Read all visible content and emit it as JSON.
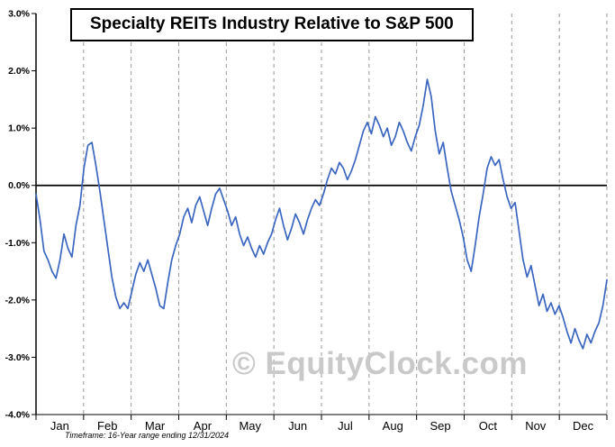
{
  "title": "Specialty REITs Industry Relative to S&P 500",
  "watermark": "© EquityClock.com",
  "footer": "Timeframe: 16-Year range ending 12/31/2024",
  "chart_data": {
    "type": "line",
    "title": "Specialty REITs Industry Relative to S&P 500",
    "series_name": "Specialty REITs relative performance vs S&P 500",
    "xlabel": "",
    "ylabel": "",
    "x_unit": "month",
    "categories": [
      "Jan",
      "Feb",
      "Mar",
      "Apr",
      "May",
      "Jun",
      "Jul",
      "Aug",
      "Sep",
      "Oct",
      "Nov",
      "Dec"
    ],
    "ylim": [
      -4.0,
      3.0
    ],
    "ytick_values": [
      3.0,
      2.0,
      1.0,
      0.0,
      -1.0,
      -2.0,
      -3.0,
      -4.0
    ],
    "ytick_labels": [
      "3.0%",
      "2.0%",
      "1.0%",
      "0.0%",
      "-1.0%",
      "-2.0%",
      "-3.0%",
      "-4.0%"
    ],
    "zero_line": true,
    "grid": "vertical-dashed-monthly",
    "legend_position": "none",
    "line_color": "#3a66c0",
    "axis_color": "#000000",
    "grid_color": "#999999",
    "values": [
      -0.15,
      -0.6,
      -1.15,
      -1.3,
      -1.5,
      -1.62,
      -1.3,
      -0.85,
      -1.1,
      -1.25,
      -0.7,
      -0.35,
      0.3,
      0.7,
      0.75,
      0.35,
      -0.1,
      -0.6,
      -1.1,
      -1.6,
      -1.95,
      -2.15,
      -2.05,
      -2.15,
      -1.85,
      -1.55,
      -1.35,
      -1.5,
      -1.3,
      -1.55,
      -1.8,
      -2.1,
      -2.15,
      -1.7,
      -1.3,
      -1.05,
      -0.85,
      -0.55,
      -0.4,
      -0.65,
      -0.35,
      -0.2,
      -0.45,
      -0.7,
      -0.4,
      -0.15,
      -0.05,
      -0.25,
      -0.45,
      -0.7,
      -0.55,
      -0.85,
      -1.05,
      -0.9,
      -1.1,
      -1.25,
      -1.05,
      -1.2,
      -1.0,
      -0.85,
      -0.6,
      -0.4,
      -0.7,
      -0.95,
      -0.75,
      -0.5,
      -0.65,
      -0.85,
      -0.6,
      -0.4,
      -0.25,
      -0.35,
      -0.15,
      0.1,
      0.3,
      0.2,
      0.4,
      0.3,
      0.1,
      0.25,
      0.45,
      0.7,
      0.95,
      1.1,
      0.9,
      1.2,
      1.05,
      0.85,
      1.0,
      0.7,
      0.85,
      1.1,
      0.95,
      0.75,
      0.6,
      0.85,
      1.05,
      1.4,
      1.85,
      1.55,
      0.95,
      0.55,
      0.75,
      0.3,
      -0.1,
      -0.35,
      -0.6,
      -0.9,
      -1.3,
      -1.5,
      -1.05,
      -0.55,
      -0.15,
      0.3,
      0.5,
      0.35,
      0.45,
      0.1,
      -0.2,
      -0.4,
      -0.3,
      -0.8,
      -1.3,
      -1.6,
      -1.4,
      -1.75,
      -2.1,
      -1.9,
      -2.2,
      -2.05,
      -2.25,
      -2.1,
      -2.3,
      -2.55,
      -2.75,
      -2.5,
      -2.7,
      -2.85,
      -2.6,
      -2.75,
      -2.55,
      -2.4,
      -2.1,
      -1.65
    ]
  }
}
